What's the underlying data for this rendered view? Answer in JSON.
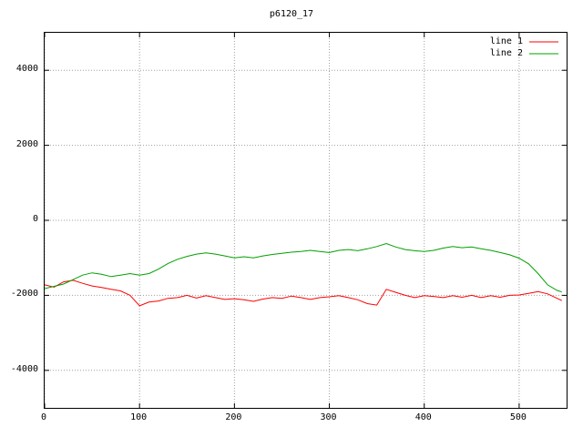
{
  "chart_data": {
    "type": "line",
    "title": "p6120_17",
    "xlabel": "",
    "ylabel": "",
    "xlim": [
      0,
      550
    ],
    "ylim": [
      -5000,
      5000
    ],
    "xticks": [
      0,
      100,
      200,
      300,
      400,
      500
    ],
    "yticks": [
      4000,
      2000,
      0,
      -2000,
      -4000
    ],
    "grid": true,
    "grid_color": "#a0a0a0",
    "border_color": "#000000",
    "background": "#ffffff",
    "legend_position": "top-right",
    "x": [
      0,
      10,
      20,
      30,
      40,
      50,
      60,
      70,
      80,
      90,
      100,
      110,
      120,
      130,
      140,
      150,
      160,
      170,
      180,
      190,
      200,
      210,
      220,
      230,
      240,
      250,
      260,
      270,
      280,
      290,
      300,
      310,
      320,
      330,
      340,
      350,
      360,
      370,
      380,
      390,
      400,
      410,
      420,
      430,
      440,
      450,
      460,
      470,
      480,
      490,
      500,
      510,
      520,
      530,
      540,
      545
    ],
    "series": [
      {
        "name": "line 1",
        "color": "#ff0000",
        "values": [
          -1720,
          -1780,
          -1640,
          -1600,
          -1680,
          -1750,
          -1790,
          -1840,
          -1880,
          -2000,
          -2280,
          -2180,
          -2150,
          -2080,
          -2060,
          -2000,
          -2070,
          -2010,
          -2060,
          -2110,
          -2090,
          -2120,
          -2160,
          -2100,
          -2060,
          -2080,
          -2020,
          -2060,
          -2110,
          -2060,
          -2040,
          -2010,
          -2060,
          -2120,
          -2220,
          -2260,
          -1840,
          -1920,
          -2000,
          -2060,
          -2010,
          -2030,
          -2060,
          -2010,
          -2050,
          -2000,
          -2060,
          -2010,
          -2050,
          -2000,
          -1990,
          -1950,
          -1900,
          -1960,
          -2080,
          -2140
        ]
      },
      {
        "name": "line 2",
        "color": "#00a000",
        "values": [
          -1820,
          -1760,
          -1700,
          -1580,
          -1460,
          -1400,
          -1440,
          -1500,
          -1460,
          -1420,
          -1460,
          -1420,
          -1300,
          -1150,
          -1040,
          -960,
          -900,
          -870,
          -900,
          -950,
          -1000,
          -970,
          -1000,
          -950,
          -910,
          -880,
          -850,
          -830,
          -800,
          -830,
          -860,
          -800,
          -780,
          -810,
          -760,
          -700,
          -620,
          -710,
          -780,
          -810,
          -830,
          -800,
          -740,
          -700,
          -730,
          -710,
          -760,
          -800,
          -860,
          -920,
          -1010,
          -1160,
          -1420,
          -1720,
          -1870,
          -1910
        ]
      }
    ]
  }
}
